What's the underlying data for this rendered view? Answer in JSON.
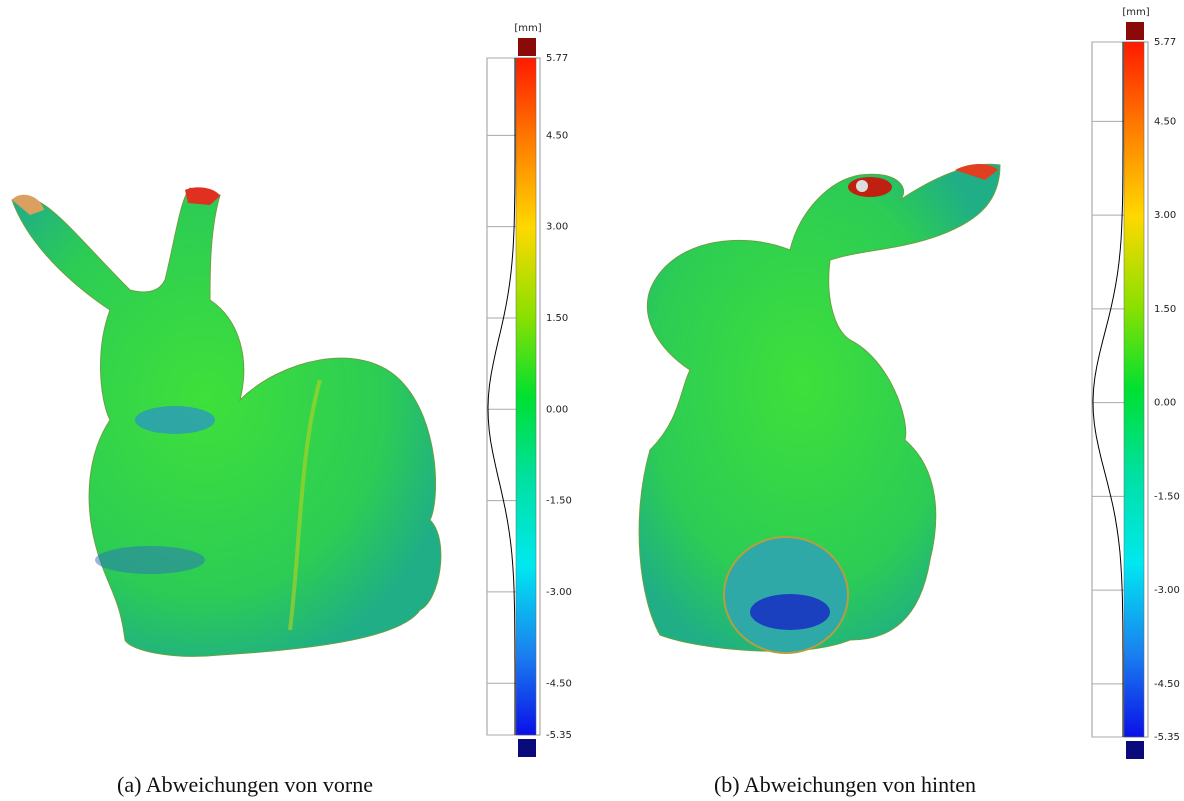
{
  "panels": [
    {
      "caption": "(a) Abweichungen von vorne",
      "unit": "[mm]",
      "ticks": [
        {
          "value": 5.77,
          "label": "5.77"
        },
        {
          "value": 4.5,
          "label": "4.50"
        },
        {
          "value": 3,
          "label": "3.00"
        },
        {
          "value": 1.5,
          "label": "1.50"
        },
        {
          "value": 0,
          "label": "0.00"
        },
        {
          "value": -1.5,
          "label": "-1.50"
        },
        {
          "value": -3,
          "label": "-3.00"
        },
        {
          "value": -4.5,
          "label": "-4.50"
        },
        {
          "value": -5.35,
          "label": "-5.35"
        }
      ]
    },
    {
      "caption": "(b) Abweichungen von hinten",
      "unit": "[mm]",
      "ticks": [
        {
          "value": 5.77,
          "label": "5.77"
        },
        {
          "value": 4.5,
          "label": "4.50"
        },
        {
          "value": 3,
          "label": "3.00"
        },
        {
          "value": 1.5,
          "label": "1.50"
        },
        {
          "value": 0,
          "label": "0.00"
        },
        {
          "value": -1.5,
          "label": "-1.50"
        },
        {
          "value": -3,
          "label": "-3.00"
        },
        {
          "value": -4.5,
          "label": "-4.50"
        },
        {
          "value": -5.35,
          "label": "-5.35"
        }
      ]
    }
  ]
}
